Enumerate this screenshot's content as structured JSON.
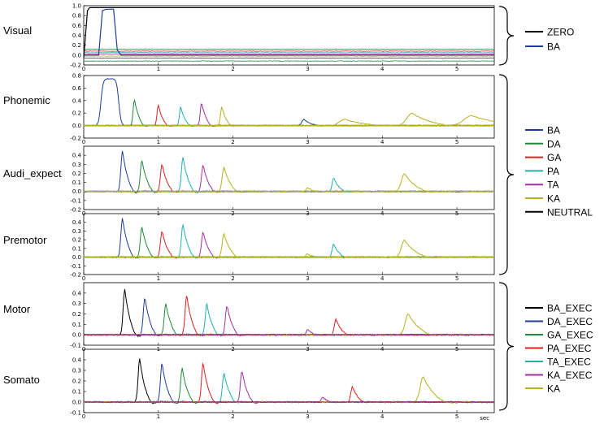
{
  "chart_data": [
    {
      "type": "line",
      "panel_label": "Visual",
      "ylim": [
        -0.2,
        1.0
      ],
      "yticks": [
        "1.0",
        "0.8",
        "0.6",
        "0.4",
        "0.2",
        "0.0",
        "-0.2"
      ],
      "series": [
        {
          "name": "ZERO",
          "color": "#000000",
          "x": [
            0,
            0.05,
            0.08,
            0.12,
            0.15,
            0.2,
            0.25,
            0.3,
            0.35,
            0.4,
            0.45,
            5.5
          ],
          "values": [
            -0.05,
            0.9,
            0.96,
            0.96,
            0.96,
            0.96,
            0.96,
            0.96,
            0.96,
            0.96,
            0.96,
            0.96
          ]
        },
        {
          "name": "BA",
          "color": "#1f3d99",
          "x": [
            0,
            0.2,
            0.25,
            0.3,
            0.35,
            0.4,
            0.45,
            0.5,
            5.5
          ],
          "values": [
            0.0,
            0.0,
            0.9,
            0.93,
            0.93,
            0.93,
            0.1,
            0.0,
            0.0
          ]
        }
      ],
      "baseline_colors": [
        "#1f8a3a",
        "#e02020",
        "#20b0b0",
        "#a030a0",
        "#b8b020",
        "#1f3d99"
      ],
      "baseline_levels": [
        0.12,
        0.08,
        0.05,
        0.02,
        -0.02,
        -0.06,
        -0.12
      ]
    },
    {
      "type": "line",
      "panel_label": "Phonemic",
      "ylim": [
        -0.2,
        0.8
      ],
      "yticks": [
        "0.8",
        "0.6",
        "0.4",
        "0.2",
        "0.0",
        "-0.2"
      ],
      "peaks": [
        {
          "name": "BA",
          "color": "#1f3d99",
          "center": 0.35,
          "height": 0.75,
          "width": 0.12,
          "type": "plateau"
        },
        {
          "name": "DA",
          "color": "#1f8a3a",
          "center": 0.68,
          "height": 0.42,
          "width": 0.05
        },
        {
          "name": "GA",
          "color": "#e02020",
          "center": 1.0,
          "height": 0.33,
          "width": 0.05
        },
        {
          "name": "PA",
          "color": "#20b0b0",
          "center": 1.3,
          "height": 0.3,
          "width": 0.05
        },
        {
          "name": "TA",
          "color": "#a030a0",
          "center": 1.58,
          "height": 0.37,
          "width": 0.05
        },
        {
          "name": "KA",
          "color": "#b8b020",
          "center": 1.85,
          "height": 0.3,
          "width": 0.05
        },
        {
          "name": "BA",
          "color": "#1f3d99",
          "center": 2.95,
          "height": 0.1,
          "width": 0.08
        },
        {
          "name": "KA",
          "color": "#b8b020",
          "center": 3.5,
          "height": 0.1,
          "width": 0.2
        },
        {
          "name": "KA",
          "color": "#b8b020",
          "center": 4.4,
          "height": 0.2,
          "width": 0.2
        },
        {
          "name": "KA",
          "color": "#b8b020",
          "center": 5.2,
          "height": 0.16,
          "width": 0.3
        }
      ]
    },
    {
      "type": "line",
      "panel_label": "Audi_expect",
      "ylim": [
        -0.2,
        0.5
      ],
      "yticks": [
        "0.4",
        "0.3",
        "0.2",
        "0.1",
        "0.0",
        "-0.1",
        "-0.2"
      ],
      "peaks": [
        {
          "name": "BA",
          "color": "#1f3d99",
          "center": 0.52,
          "height": 0.45,
          "width": 0.06
        },
        {
          "name": "DA",
          "color": "#1f8a3a",
          "center": 0.78,
          "height": 0.35,
          "width": 0.06
        },
        {
          "name": "GA",
          "color": "#e02020",
          "center": 1.05,
          "height": 0.3,
          "width": 0.06
        },
        {
          "name": "PA",
          "color": "#20b0b0",
          "center": 1.33,
          "height": 0.38,
          "width": 0.06
        },
        {
          "name": "TA",
          "color": "#a030a0",
          "center": 1.6,
          "height": 0.29,
          "width": 0.06
        },
        {
          "name": "KA",
          "color": "#b8b020",
          "center": 1.88,
          "height": 0.27,
          "width": 0.07
        },
        {
          "name": "PA",
          "color": "#20b0b0",
          "center": 3.35,
          "height": 0.15,
          "width": 0.06
        },
        {
          "name": "KA",
          "color": "#b8b020",
          "center": 4.3,
          "height": 0.2,
          "width": 0.12
        },
        {
          "name": "KA",
          "color": "#b8b020",
          "center": 3.0,
          "height": 0.04,
          "width": 0.06
        }
      ]
    },
    {
      "type": "line",
      "panel_label": "Premotor",
      "ylim": [
        -0.2,
        0.5
      ],
      "yticks": [
        "0.4",
        "0.3",
        "0.2",
        "0.1",
        "0.0",
        "-0.1",
        "-0.2"
      ],
      "peaks": [
        {
          "name": "BA",
          "color": "#1f3d99",
          "center": 0.52,
          "height": 0.45,
          "width": 0.06
        },
        {
          "name": "DA",
          "color": "#1f8a3a",
          "center": 0.78,
          "height": 0.35,
          "width": 0.06
        },
        {
          "name": "GA",
          "color": "#e02020",
          "center": 1.05,
          "height": 0.3,
          "width": 0.06
        },
        {
          "name": "PA",
          "color": "#20b0b0",
          "center": 1.33,
          "height": 0.38,
          "width": 0.06
        },
        {
          "name": "TA",
          "color": "#a030a0",
          "center": 1.6,
          "height": 0.29,
          "width": 0.06
        },
        {
          "name": "KA",
          "color": "#b8b020",
          "center": 1.88,
          "height": 0.27,
          "width": 0.07
        },
        {
          "name": "PA",
          "color": "#20b0b0",
          "center": 3.35,
          "height": 0.15,
          "width": 0.06
        },
        {
          "name": "KA",
          "color": "#b8b020",
          "center": 4.3,
          "height": 0.2,
          "width": 0.12
        },
        {
          "name": "KA",
          "color": "#b8b020",
          "center": 3.0,
          "height": 0.04,
          "width": 0.06
        }
      ]
    },
    {
      "type": "line",
      "panel_label": "Motor",
      "ylim": [
        -0.1,
        0.5
      ],
      "yticks": [
        "0.4",
        "0.3",
        "0.2",
        "0.1",
        "0.0",
        "-0.1"
      ],
      "peaks": [
        {
          "name": "BA_EXEC",
          "color": "#000000",
          "center": 0.55,
          "height": 0.44,
          "width": 0.06
        },
        {
          "name": "DA_EXEC",
          "color": "#1f3d99",
          "center": 0.82,
          "height": 0.36,
          "width": 0.06
        },
        {
          "name": "GA_EXEC",
          "color": "#1f8a3a",
          "center": 1.1,
          "height": 0.3,
          "width": 0.06
        },
        {
          "name": "PA_EXEC",
          "color": "#e02020",
          "center": 1.38,
          "height": 0.38,
          "width": 0.06
        },
        {
          "name": "TA_EXEC",
          "color": "#20b0b0",
          "center": 1.65,
          "height": 0.3,
          "width": 0.06
        },
        {
          "name": "KA_EXEC",
          "color": "#a030a0",
          "center": 1.92,
          "height": 0.28,
          "width": 0.06
        },
        {
          "name": "PA_EXEC",
          "color": "#e02020",
          "center": 3.38,
          "height": 0.15,
          "width": 0.06
        },
        {
          "name": "KA",
          "color": "#b8b020",
          "center": 4.35,
          "height": 0.2,
          "width": 0.12
        },
        {
          "name": "KA_EXEC",
          "color": "#a030a0",
          "center": 3.0,
          "height": 0.05,
          "width": 0.05
        }
      ]
    },
    {
      "type": "line",
      "panel_label": "Somato",
      "ylim": [
        -0.1,
        0.5
      ],
      "yticks": [
        "0.4",
        "0.3",
        "0.2",
        "0.1",
        "0.0",
        "-0.1"
      ],
      "xticks": [
        "0",
        "1",
        "2",
        "3",
        "4",
        "5"
      ],
      "xlabel": "sec",
      "peaks": [
        {
          "name": "BA_EXEC",
          "color": "#000000",
          "center": 0.75,
          "height": 0.42,
          "width": 0.06
        },
        {
          "name": "DA_EXEC",
          "color": "#1f3d99",
          "center": 1.05,
          "height": 0.37,
          "width": 0.06
        },
        {
          "name": "GA_EXEC",
          "color": "#1f8a3a",
          "center": 1.32,
          "height": 0.32,
          "width": 0.06
        },
        {
          "name": "PA_EXEC",
          "color": "#e02020",
          "center": 1.6,
          "height": 0.37,
          "width": 0.06
        },
        {
          "name": "TA_EXEC",
          "color": "#20b0b0",
          "center": 1.88,
          "height": 0.28,
          "width": 0.06
        },
        {
          "name": "KA_EXEC",
          "color": "#a030a0",
          "center": 2.12,
          "height": 0.3,
          "width": 0.06
        },
        {
          "name": "PA_EXEC",
          "color": "#e02020",
          "center": 3.6,
          "height": 0.15,
          "width": 0.06
        },
        {
          "name": "KA",
          "color": "#b8b020",
          "center": 4.55,
          "height": 0.24,
          "width": 0.12
        },
        {
          "name": "KA_EXEC",
          "color": "#a030a0",
          "center": 3.2,
          "height": 0.05,
          "width": 0.05
        }
      ]
    }
  ],
  "x_range": [
    0,
    5.5
  ],
  "legends": [
    {
      "entries": [
        {
          "label": "ZERO",
          "color": "#000000"
        },
        {
          "label": "BA",
          "color": "#1f3d99"
        }
      ]
    },
    {
      "entries": [
        {
          "label": "BA",
          "color": "#1f3d99"
        },
        {
          "label": "DA",
          "color": "#1f8a3a"
        },
        {
          "label": "GA",
          "color": "#e02020"
        },
        {
          "label": "PA",
          "color": "#20b0b0"
        },
        {
          "label": "TA",
          "color": "#a030a0"
        },
        {
          "label": "KA",
          "color": "#b8b020"
        },
        {
          "label": "NEUTRAL",
          "color": "#000000"
        }
      ]
    },
    {
      "entries": [
        {
          "label": "BA_EXEC",
          "color": "#000000"
        },
        {
          "label": "DA_EXEC",
          "color": "#1f3d99"
        },
        {
          "label": "GA_EXEC",
          "color": "#1f8a3a"
        },
        {
          "label": "PA_EXEC",
          "color": "#e02020"
        },
        {
          "label": "TA_EXEC",
          "color": "#20b0b0"
        },
        {
          "label": "KA_EXEC",
          "color": "#a030a0"
        },
        {
          "label": "KA",
          "color": "#b8b020"
        }
      ]
    }
  ]
}
